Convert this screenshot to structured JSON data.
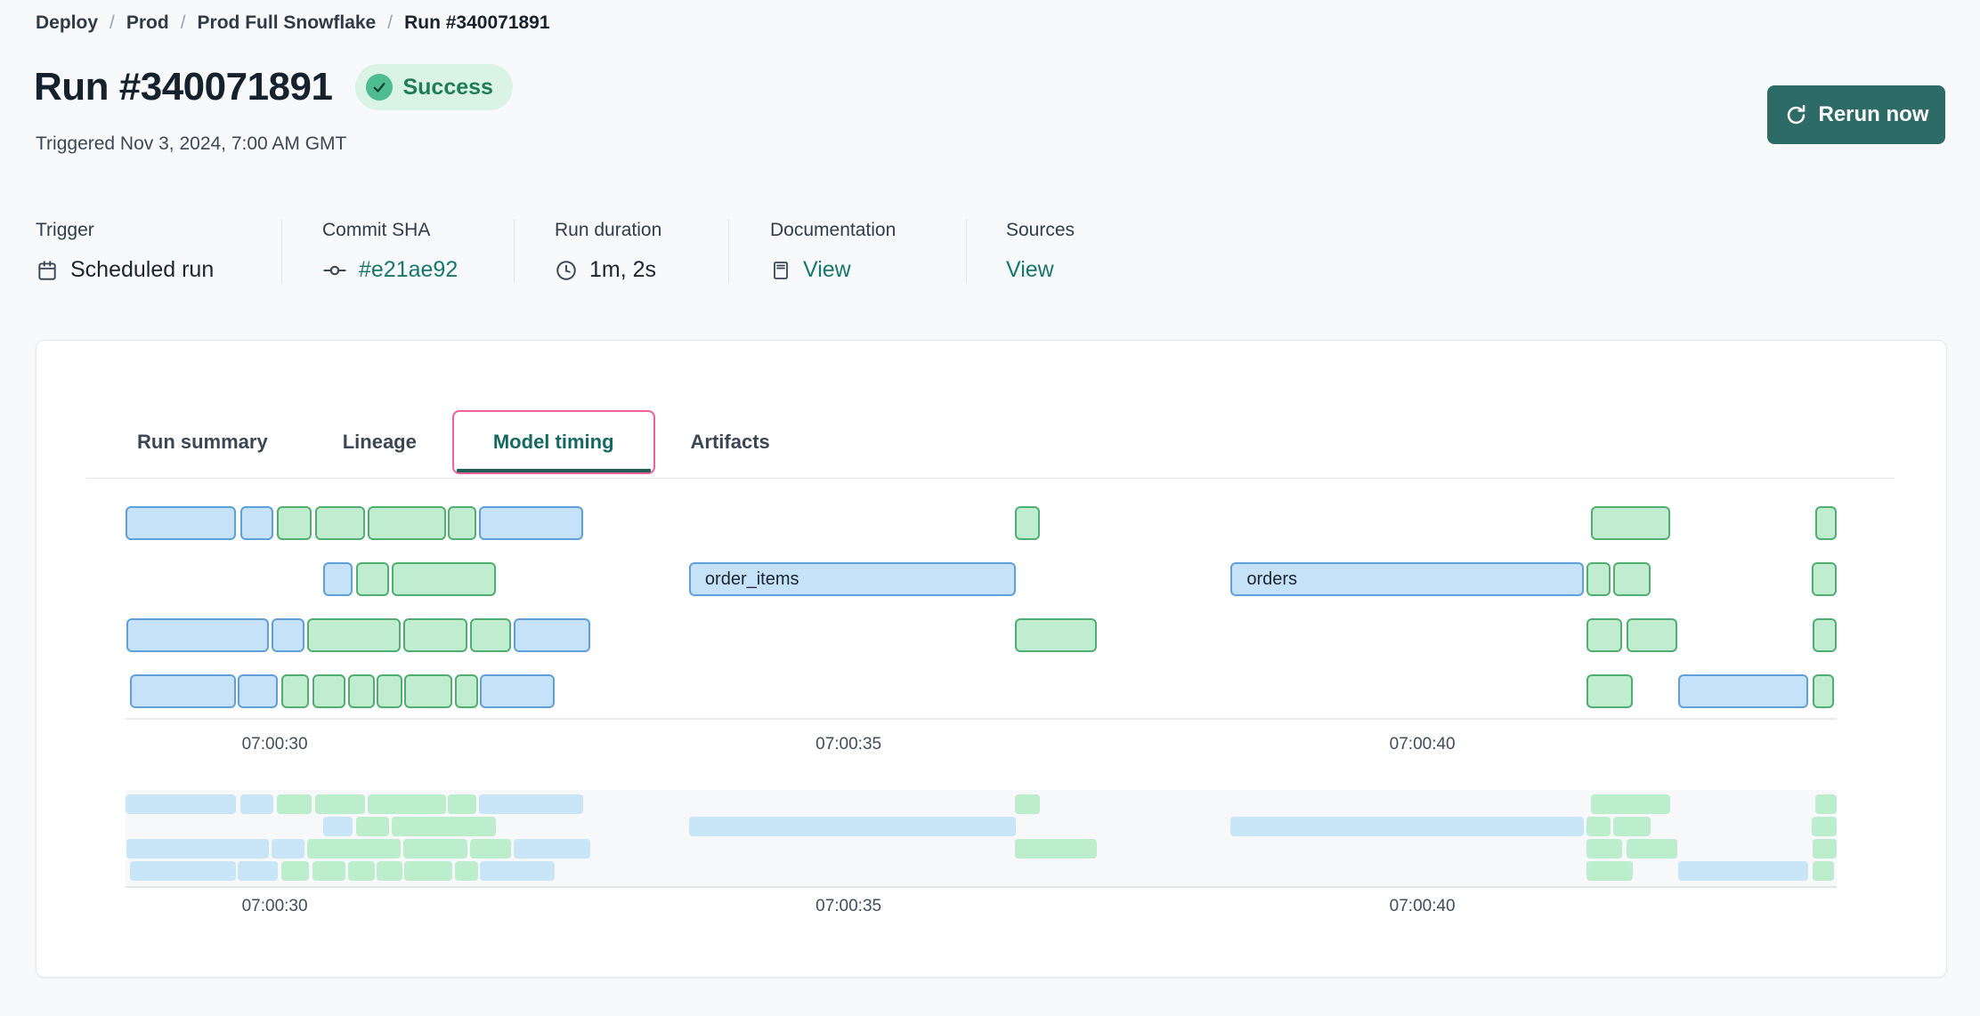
{
  "colors": {
    "accent_teal": "#17776f",
    "button_teal": "#2d6b67",
    "active_tab_ring_pink": "#ef5f9d",
    "active_tab_underline": "#215e58",
    "success_badge_bg": "#d9f3e5",
    "success_badge_icon": "#4dbc8e",
    "success_badge_text": "#1f7c58"
  },
  "breadcrumb": {
    "separator": "/",
    "items": [
      "Deploy",
      "Prod",
      "Prod Full Snowflake",
      "Run #340071891"
    ]
  },
  "header": {
    "title": "Run #340071891",
    "status": "Success",
    "triggered": "Triggered Nov 3, 2024, 7:00 AM GMT",
    "rerun_label": "Rerun now"
  },
  "meta": [
    {
      "label": "Trigger",
      "value": "Scheduled run",
      "icon": "calendar-icon",
      "link": false
    },
    {
      "label": "Commit SHA",
      "value": "#e21ae92",
      "icon": "commit-icon",
      "link": true
    },
    {
      "label": "Run duration",
      "value": "1m, 2s",
      "icon": "clock-icon",
      "link": false
    },
    {
      "label": "Documentation",
      "value": "View",
      "icon": "document-icon",
      "link": true
    },
    {
      "label": "Sources",
      "value": "View",
      "icon": null,
      "link": true
    }
  ],
  "tabs": [
    {
      "label": "Run summary",
      "active": false
    },
    {
      "label": "Lineage",
      "active": false
    },
    {
      "label": "Model timing",
      "active": true
    },
    {
      "label": "Artifacts",
      "active": false
    }
  ],
  "chart_data": {
    "type": "gantt",
    "title": "Model timing",
    "x_unit": "time of day, seconds after 07:00:00 GMT",
    "domain": [
      28.7,
      43.61
    ],
    "ticks": [
      {
        "t": 30,
        "label": "07:00:30"
      },
      {
        "t": 35,
        "label": "07:00:35"
      },
      {
        "t": 40,
        "label": "07:00:40"
      }
    ],
    "colors": {
      "blue_fill": "#c5e2f8",
      "blue_border": "#5f9fda",
      "green_fill": "#c0edd0",
      "green_border": "#4fae70",
      "mini_blue": "#c9e5f8",
      "mini_green": "#bceecd"
    },
    "rows": [
      {
        "bars": [
          {
            "s": 28.7,
            "e": 29.66,
            "c": "blue"
          },
          {
            "s": 29.7,
            "e": 29.99,
            "c": "blue"
          },
          {
            "s": 30.02,
            "e": 30.32,
            "c": "green"
          },
          {
            "s": 30.35,
            "e": 30.79,
            "c": "green"
          },
          {
            "s": 30.81,
            "e": 31.49,
            "c": "green"
          },
          {
            "s": 31.51,
            "e": 31.76,
            "c": "green"
          },
          {
            "s": 31.78,
            "e": 32.69,
            "c": "blue"
          },
          {
            "s": 36.45,
            "e": 36.67,
            "c": "green"
          },
          {
            "s": 41.47,
            "e": 42.16,
            "c": "green"
          },
          {
            "s": 43.42,
            "e": 43.61,
            "c": "green"
          }
        ]
      },
      {
        "bars": [
          {
            "s": 30.42,
            "e": 30.68,
            "c": "blue"
          },
          {
            "s": 30.71,
            "e": 31.0,
            "c": "green"
          },
          {
            "s": 31.02,
            "e": 31.93,
            "c": "green"
          },
          {
            "s": 33.61,
            "e": 36.46,
            "c": "blue",
            "label": "order_items"
          },
          {
            "s": 38.33,
            "e": 41.41,
            "c": "blue",
            "label": "orders"
          },
          {
            "s": 41.43,
            "e": 41.64,
            "c": "green"
          },
          {
            "s": 41.66,
            "e": 41.99,
            "c": "green"
          },
          {
            "s": 43.39,
            "e": 43.61,
            "c": "green"
          }
        ]
      },
      {
        "bars": [
          {
            "s": 28.71,
            "e": 29.95,
            "c": "blue"
          },
          {
            "s": 29.97,
            "e": 30.26,
            "c": "blue"
          },
          {
            "s": 30.28,
            "e": 31.1,
            "c": "green"
          },
          {
            "s": 31.12,
            "e": 31.68,
            "c": "green"
          },
          {
            "s": 31.7,
            "e": 32.06,
            "c": "green"
          },
          {
            "s": 32.08,
            "e": 32.75,
            "c": "blue"
          },
          {
            "s": 36.45,
            "e": 37.16,
            "c": "green"
          },
          {
            "s": 41.43,
            "e": 41.74,
            "c": "green"
          },
          {
            "s": 41.78,
            "e": 42.22,
            "c": "green"
          },
          {
            "s": 43.4,
            "e": 43.61,
            "c": "green"
          }
        ]
      },
      {
        "bars": [
          {
            "s": 28.74,
            "e": 29.66,
            "c": "blue"
          },
          {
            "s": 29.68,
            "e": 30.03,
            "c": "blue"
          },
          {
            "s": 30.06,
            "e": 30.3,
            "c": "green"
          },
          {
            "s": 30.33,
            "e": 30.62,
            "c": "green"
          },
          {
            "s": 30.64,
            "e": 30.87,
            "c": "green"
          },
          {
            "s": 30.89,
            "e": 31.11,
            "c": "green"
          },
          {
            "s": 31.13,
            "e": 31.55,
            "c": "green"
          },
          {
            "s": 31.57,
            "e": 31.77,
            "c": "green"
          },
          {
            "s": 31.79,
            "e": 32.44,
            "c": "blue"
          },
          {
            "s": 41.43,
            "e": 41.83,
            "c": "green"
          },
          {
            "s": 42.23,
            "e": 43.36,
            "c": "blue"
          },
          {
            "s": 43.4,
            "e": 43.59,
            "c": "green"
          }
        ]
      }
    ]
  }
}
